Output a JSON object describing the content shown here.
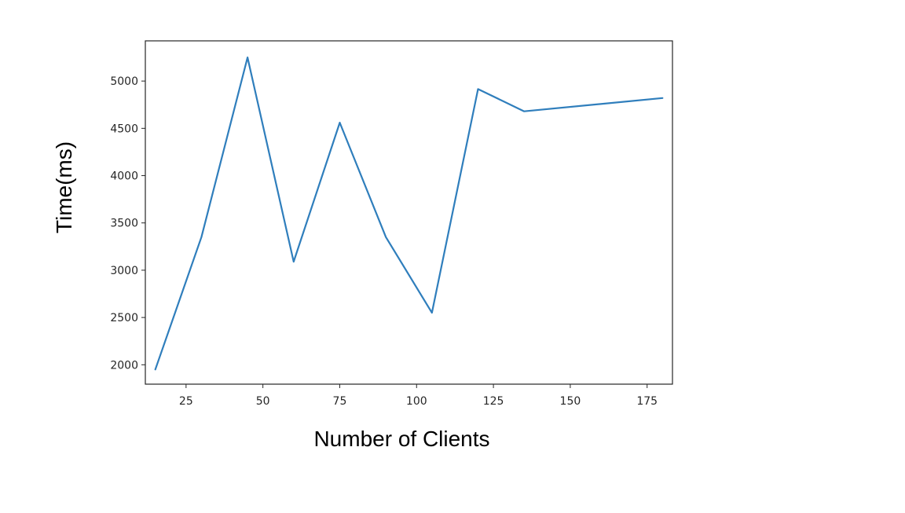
{
  "chart_data": {
    "type": "line",
    "title": "",
    "xlabel": "Number of Clients",
    "ylabel": "Time(ms)",
    "xlim": [
      11.75,
      183.25
    ],
    "ylim": [
      1795,
      5425
    ],
    "x_ticks": [
      25,
      50,
      75,
      100,
      125,
      150,
      175
    ],
    "y_ticks": [
      2000,
      2500,
      3000,
      3500,
      4000,
      4500,
      5000
    ],
    "x_tick_labels": [
      "25",
      "50",
      "75",
      "100",
      "125",
      "150",
      "175"
    ],
    "y_tick_labels": [
      "2000",
      "2500",
      "3000",
      "3500",
      "4000",
      "4500",
      "5000"
    ],
    "grid": false,
    "series": [
      {
        "color": "#2f7ebc",
        "x": [
          15,
          30,
          45,
          60,
          75,
          90,
          105,
          120,
          135,
          180
        ],
        "y": [
          1950,
          3350,
          5250,
          3090,
          4560,
          3350,
          2550,
          4915,
          4680,
          4820
        ]
      }
    ]
  }
}
